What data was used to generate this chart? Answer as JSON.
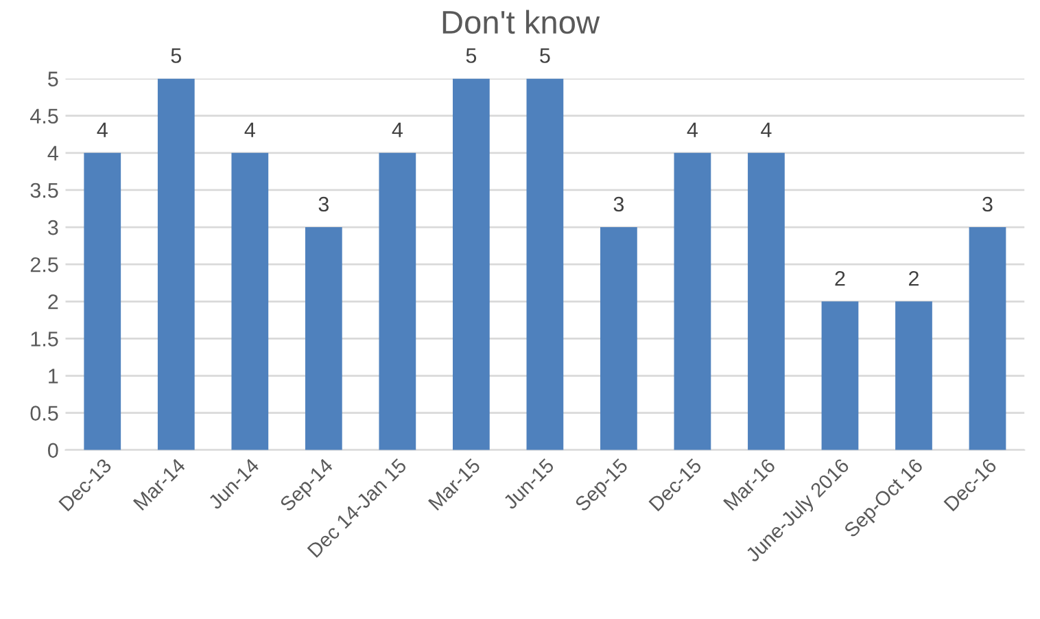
{
  "chart_data": {
    "type": "bar",
    "title": "Don't know",
    "categories": [
      "Dec-13",
      "Mar-14",
      "Jun-14",
      "Sep-14",
      "Dec 14-Jan 15",
      "Mar-15",
      "Jun-15",
      "Sep-15",
      "Dec-15",
      "Mar-16",
      "June-July 2016",
      "Sep-Oct 16",
      "Dec-16"
    ],
    "values": [
      4,
      5,
      4,
      3,
      4,
      5,
      5,
      3,
      4,
      4,
      2,
      2,
      3
    ],
    "color": "#4f81bd",
    "ylim": [
      0,
      5
    ],
    "yticks": [
      0,
      0.5,
      1,
      1.5,
      2,
      2.5,
      3,
      3.5,
      4,
      4.5,
      5
    ],
    "grid": "y",
    "data_labels": true
  }
}
